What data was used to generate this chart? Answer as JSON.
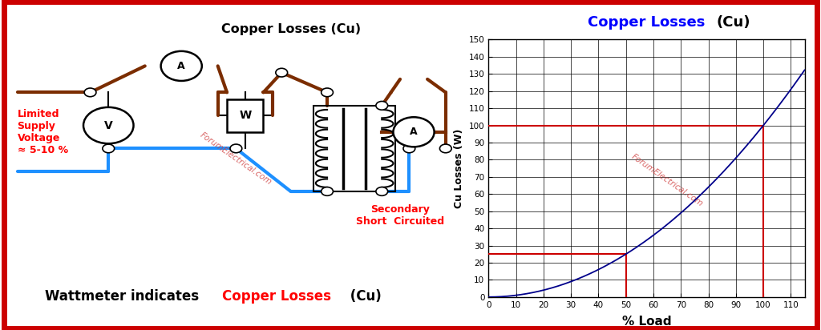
{
  "title_left_text": "Copper Losses (Cu)",
  "title_right_blue": "Copper Losses",
  "title_right_black": " (Cu)",
  "xlabel": "% Load",
  "ylabel": "Cu Losses (W)",
  "xlim": [
    0,
    115
  ],
  "ylim": [
    0,
    150
  ],
  "xticks": [
    0,
    10,
    20,
    30,
    40,
    50,
    60,
    70,
    80,
    90,
    100,
    110
  ],
  "yticks": [
    0,
    10,
    20,
    30,
    40,
    50,
    60,
    70,
    80,
    90,
    100,
    110,
    120,
    130,
    140,
    150
  ],
  "curve_color": "#00008B",
  "hline1_y": 25,
  "hline2_y": 100,
  "vline1_x": 50,
  "vline2_x": 100,
  "ref_line_color": "#CC0000",
  "watermark_color": "#CC3333",
  "bg_color": "#ffffff",
  "border_color": "#CC0000",
  "grid_color": "#000000",
  "text_limited_supply": "Limited\nSupply\nVoltage\n≈ 5-10 %",
  "text_secondary": "Secondary\nShort  Circuited",
  "text_bottom_black1": "Wattmeter indicates ",
  "text_bottom_red": "Copper Losses",
  "text_bottom_black2": " (Cu)",
  "wire_brown": "#7B2D00",
  "wire_blue": "#1E90FF",
  "wire_black": "#000000",
  "junction_color": "#888888"
}
